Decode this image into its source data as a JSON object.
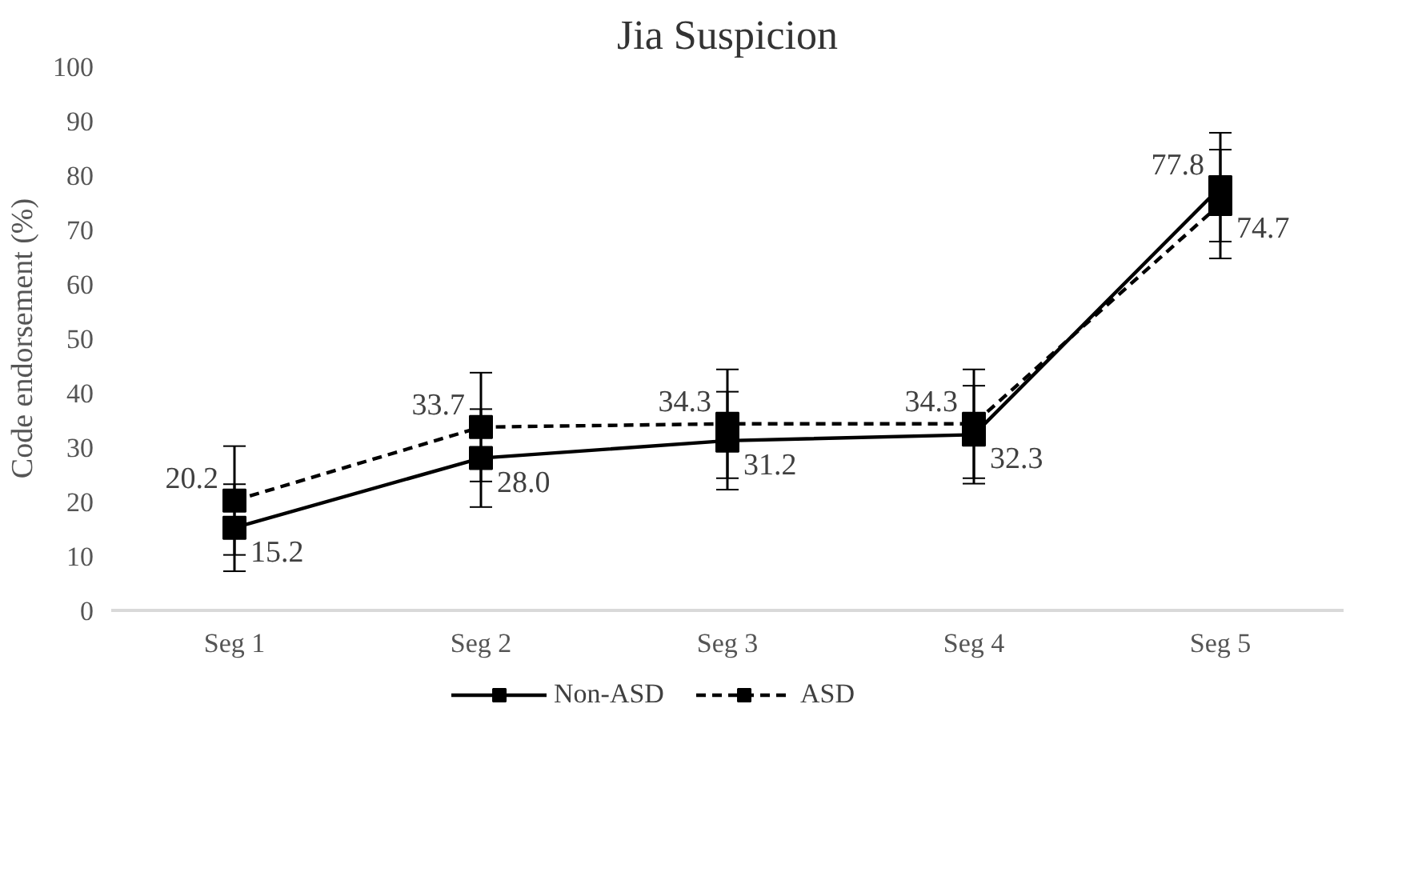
{
  "chart_data": {
    "type": "line",
    "title": "Jia Suspicion",
    "ylabel": "Code endorsement (%)",
    "categories": [
      "Seg 1",
      "Seg 2",
      "Seg 3",
      "Seg 4",
      "Seg 5"
    ],
    "series": [
      {
        "name": "Non-ASD",
        "color": "#000000",
        "line_style": "solid",
        "values": [
          15.2,
          28.0,
          31.2,
          32.3,
          77.8
        ],
        "errors": [
          8,
          9,
          9,
          9,
          10
        ],
        "value_labels": [
          "15.2",
          "28.0",
          "31.2",
          "32.3",
          "77.8"
        ]
      },
      {
        "name": "ASD",
        "color": "#000000",
        "line_style": "dashed",
        "values": [
          20.2,
          33.7,
          34.3,
          34.3,
          74.7
        ],
        "errors": [
          10,
          10,
          10,
          10,
          10
        ],
        "value_labels": [
          "20.2",
          "33.7",
          "34.3",
          "34.3",
          "74.7"
        ]
      }
    ],
    "ylim": [
      0,
      100
    ],
    "yticks": [
      0,
      10,
      20,
      30,
      40,
      50,
      60,
      70,
      80,
      90,
      100
    ],
    "marker": "square",
    "data_labels": true,
    "grid": false,
    "legend": "bottom"
  }
}
